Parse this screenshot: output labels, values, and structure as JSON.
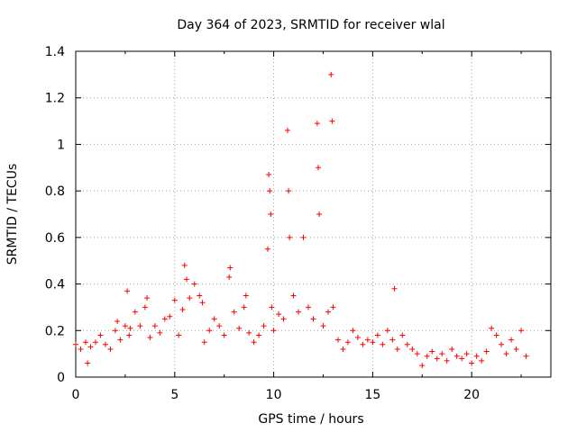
{
  "chart_data": {
    "type": "scatter",
    "title": "Day 364 of 2023, SRMTID for receiver wlal",
    "xlabel": "GPS time / hours",
    "ylabel": "SRMTID / TECUs",
    "xlim": [
      0,
      24
    ],
    "ylim": [
      0,
      1.4
    ],
    "xticks": [
      0,
      5,
      10,
      15,
      20
    ],
    "xtick_labels": [
      "0",
      "5",
      "10",
      "15",
      "20"
    ],
    "yticks": [
      0,
      0.2,
      0.4,
      0.6,
      0.8,
      1.0,
      1.2,
      1.4
    ],
    "ytick_labels": [
      "0",
      "0.2",
      "0.4",
      "0.6",
      "0.8",
      "1",
      "1.2",
      "1.4"
    ],
    "grid": true,
    "marker": "+",
    "colors": {
      "series": "#ff0000",
      "grid": "#a0a0a0",
      "axis": "#000000"
    },
    "series": [
      {
        "name": "SRMTID",
        "x": [
          0.0,
          0.25,
          0.5,
          0.6,
          0.75,
          1.0,
          1.25,
          1.5,
          1.75,
          2.0,
          2.1,
          2.25,
          2.5,
          2.6,
          2.7,
          2.75,
          3.0,
          3.25,
          3.5,
          3.6,
          3.75,
          4.0,
          4.25,
          4.5,
          4.75,
          5.0,
          5.2,
          5.4,
          5.5,
          5.6,
          5.75,
          6.0,
          6.25,
          6.4,
          6.5,
          6.75,
          7.0,
          7.25,
          7.5,
          7.75,
          7.8,
          8.0,
          8.25,
          8.5,
          8.6,
          8.75,
          9.0,
          9.25,
          9.5,
          9.7,
          9.75,
          9.8,
          9.85,
          9.9,
          10.0,
          10.25,
          10.5,
          10.7,
          10.75,
          10.8,
          11.0,
          11.25,
          11.5,
          11.75,
          12.0,
          12.2,
          12.25,
          12.3,
          12.5,
          12.75,
          12.9,
          12.95,
          13.0,
          13.25,
          13.5,
          13.75,
          14.0,
          14.25,
          14.5,
          14.75,
          15.0,
          15.25,
          15.5,
          15.75,
          16.0,
          16.1,
          16.25,
          16.5,
          16.75,
          17.0,
          17.25,
          17.5,
          17.75,
          18.0,
          18.25,
          18.5,
          18.75,
          19.0,
          19.25,
          19.5,
          19.75,
          20.0,
          20.25,
          20.5,
          20.75,
          21.0,
          21.25,
          21.5,
          21.75,
          22.0,
          22.25,
          22.5,
          22.75
        ],
        "y": [
          0.14,
          0.12,
          0.15,
          0.06,
          0.13,
          0.15,
          0.18,
          0.14,
          0.12,
          0.2,
          0.24,
          0.16,
          0.22,
          0.37,
          0.18,
          0.21,
          0.28,
          0.22,
          0.3,
          0.34,
          0.17,
          0.22,
          0.19,
          0.25,
          0.26,
          0.33,
          0.18,
          0.29,
          0.48,
          0.42,
          0.34,
          0.4,
          0.35,
          0.32,
          0.15,
          0.2,
          0.25,
          0.22,
          0.18,
          0.43,
          0.47,
          0.28,
          0.21,
          0.3,
          0.35,
          0.19,
          0.15,
          0.18,
          0.22,
          0.55,
          0.87,
          0.8,
          0.7,
          0.3,
          0.2,
          0.27,
          0.25,
          1.06,
          0.8,
          0.6,
          0.35,
          0.28,
          0.6,
          0.3,
          0.25,
          1.09,
          0.9,
          0.7,
          0.22,
          0.28,
          1.3,
          1.1,
          0.3,
          0.16,
          0.12,
          0.15,
          0.2,
          0.17,
          0.14,
          0.16,
          0.15,
          0.18,
          0.14,
          0.2,
          0.16,
          0.38,
          0.12,
          0.18,
          0.14,
          0.12,
          0.1,
          0.05,
          0.09,
          0.11,
          0.08,
          0.1,
          0.07,
          0.12,
          0.09,
          0.08,
          0.1,
          0.06,
          0.09,
          0.07,
          0.11,
          0.21,
          0.18,
          0.14,
          0.1,
          0.16,
          0.12,
          0.2,
          0.09
        ]
      }
    ]
  }
}
